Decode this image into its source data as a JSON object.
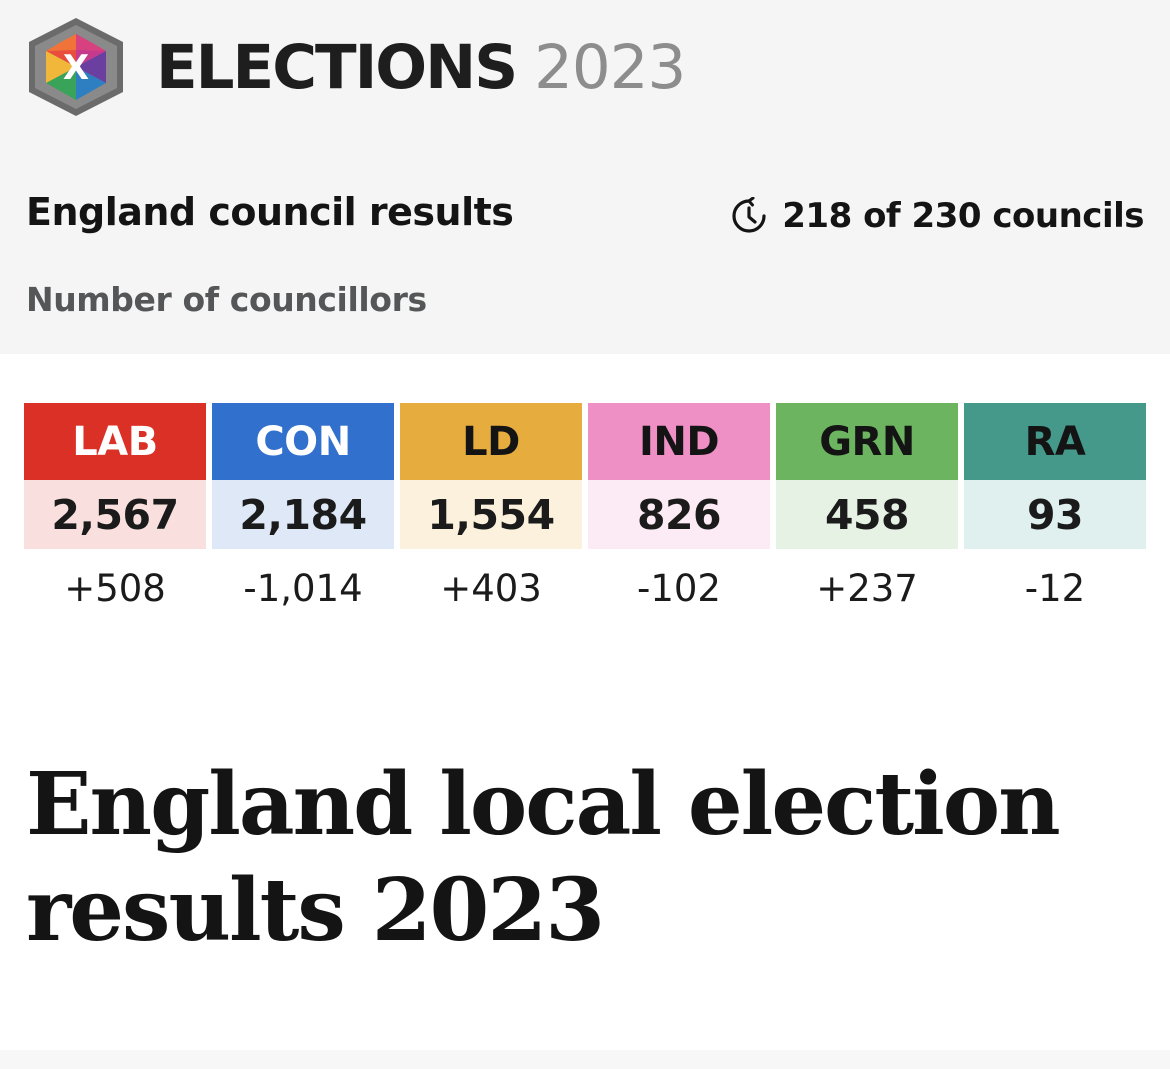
{
  "brand": {
    "title": "ELECTIONS",
    "year": "2023",
    "logo_icon": "ballot-cube-x-icon",
    "logo_mark": "X"
  },
  "summary": {
    "title": "England council results",
    "councils_text": "218 of 230 councils",
    "councils_icon": "refresh-clock-icon",
    "subtitle": "Number of councillors"
  },
  "parties": [
    {
      "label": "LAB",
      "seats": "2,567",
      "change": "+508",
      "color": "#da3025",
      "tint": "#f9e0de",
      "label_color": "#ffffff"
    },
    {
      "label": "CON",
      "seats": "2,184",
      "change": "-1,014",
      "color": "#3170cc",
      "tint": "#dfe8f6",
      "label_color": "#ffffff"
    },
    {
      "label": "LD",
      "seats": "1,554",
      "change": "+403",
      "color": "#e6ac3e",
      "tint": "#fbf1dc",
      "label_color": "#141414"
    },
    {
      "label": "IND",
      "seats": "826",
      "change": "-102",
      "color": "#ee8fc6",
      "tint": "#fcebf4",
      "label_color": "#141414"
    },
    {
      "label": "GRN",
      "seats": "458",
      "change": "+237",
      "color": "#6db461",
      "tint": "#e6f2e4",
      "label_color": "#141414"
    },
    {
      "label": "RA",
      "seats": "93",
      "change": "-12",
      "color": "#45998b",
      "tint": "#dff0ee",
      "label_color": "#141414"
    }
  ],
  "headline": "England local election results 2023"
}
